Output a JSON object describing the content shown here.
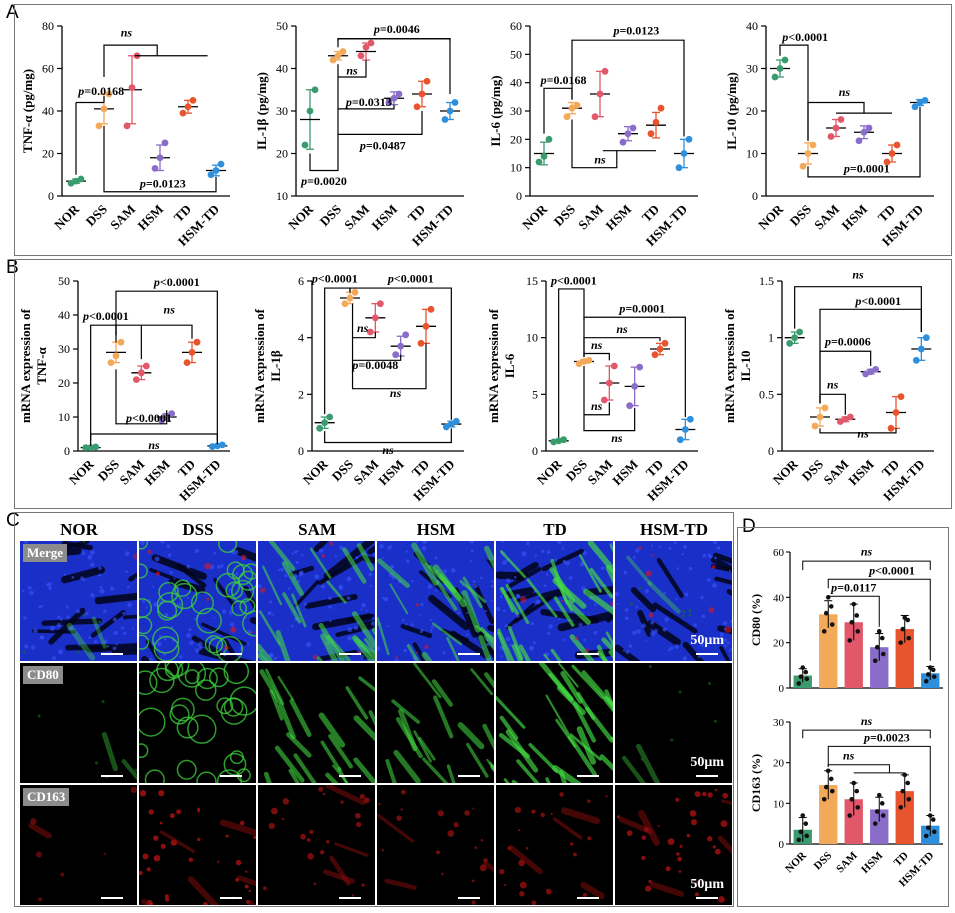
{
  "panel_labels": {
    "a": "A",
    "b": "B",
    "c": "C",
    "d": "D"
  },
  "groups": [
    "NOR",
    "DSS",
    "SAM",
    "HSM",
    "TD",
    "HSM-TD"
  ],
  "colors": {
    "NOR": "#3a9b6f",
    "DSS": "#f3a95a",
    "SAM": "#e0586a",
    "HSM": "#8a6cc9",
    "TD": "#e8542e",
    "HSM-TD": "#2e8fdc"
  },
  "chart_data": [
    {
      "id": "a1",
      "type": "scatter",
      "ylabel": "TNF-α (pg/mg)",
      "ylim": [
        0,
        80
      ],
      "yticks": [
        0,
        20,
        40,
        60,
        80
      ],
      "categories": [
        "NOR",
        "DSS",
        "SAM",
        "HSM",
        "TD",
        "HSM-TD"
      ],
      "points": [
        [
          6,
          7,
          8
        ],
        [
          33,
          41,
          48
        ],
        [
          33,
          51,
          66
        ],
        [
          13,
          18,
          25
        ],
        [
          39,
          42,
          45
        ],
        [
          10,
          12,
          15
        ]
      ],
      "means": [
        7,
        41,
        50,
        18,
        42,
        12
      ],
      "sd": [
        1,
        7,
        16,
        6,
        3,
        2.5
      ],
      "annotations": [
        {
          "text": "ns",
          "kind": "ns"
        },
        {
          "text": "p=0.0168",
          "kind": "p"
        },
        {
          "text": "p=0.0123",
          "kind": "p"
        }
      ]
    },
    {
      "id": "a2",
      "type": "scatter",
      "ylabel": "IL-1β (pg/mg)",
      "ylim": [
        10,
        50
      ],
      "yticks": [
        10,
        20,
        30,
        40,
        50
      ],
      "categories": [
        "NOR",
        "DSS",
        "SAM",
        "HSM",
        "TD",
        "HSM-TD"
      ],
      "points": [
        [
          22,
          30,
          35
        ],
        [
          42,
          43,
          44
        ],
        [
          43,
          45,
          46
        ],
        [
          32,
          33,
          34
        ],
        [
          31,
          34,
          37
        ],
        [
          28,
          30,
          32
        ]
      ],
      "means": [
        28,
        43,
        44,
        33,
        34,
        30
      ],
      "sd": [
        7,
        1,
        2,
        1.5,
        3,
        2
      ],
      "annotations": [
        {
          "text": "p=0.0046",
          "kind": "p"
        },
        {
          "text": "ns",
          "kind": "ns"
        },
        {
          "text": "p=0.0313",
          "kind": "p"
        },
        {
          "text": "p=0.0487",
          "kind": "p"
        },
        {
          "text": "p=0.0020",
          "kind": "p"
        }
      ]
    },
    {
      "id": "a3",
      "type": "scatter",
      "ylabel": "IL-6 (pg/mg)",
      "ylim": [
        0,
        60
      ],
      "yticks": [
        0,
        10,
        20,
        30,
        40,
        50,
        60
      ],
      "categories": [
        "NOR",
        "DSS",
        "SAM",
        "HSM",
        "TD",
        "HSM-TD"
      ],
      "points": [
        [
          12,
          14,
          20
        ],
        [
          28,
          31,
          32
        ],
        [
          28,
          36,
          44
        ],
        [
          19,
          22,
          24
        ],
        [
          22,
          26,
          31
        ],
        [
          10,
          15,
          20
        ]
      ],
      "means": [
        15,
        31,
        36,
        22,
        25,
        15
      ],
      "sd": [
        4,
        2,
        8,
        2.5,
        4.5,
        5
      ],
      "annotations": [
        {
          "text": "p=0.0123",
          "kind": "p"
        },
        {
          "text": "p=0.0168",
          "kind": "p"
        },
        {
          "text": "ns",
          "kind": "ns"
        }
      ]
    },
    {
      "id": "a4",
      "type": "scatter",
      "ylabel": "IL-10 (pg/mg)",
      "ylim": [
        0,
        40
      ],
      "yticks": [
        0,
        10,
        20,
        30,
        40
      ],
      "categories": [
        "NOR",
        "DSS",
        "SAM",
        "HSM",
        "TD",
        "HSM-TD"
      ],
      "points": [
        [
          28,
          30,
          32
        ],
        [
          7,
          10,
          12
        ],
        [
          14,
          16,
          18
        ],
        [
          13,
          15,
          16
        ],
        [
          8,
          10,
          12
        ],
        [
          21,
          22,
          22.5
        ]
      ],
      "means": [
        30,
        10,
        16,
        15,
        10,
        22
      ],
      "sd": [
        2,
        2.5,
        2,
        1.5,
        2,
        0.7
      ],
      "annotations": [
        {
          "text": "p<0.0001",
          "kind": "p"
        },
        {
          "text": "ns",
          "kind": "ns"
        },
        {
          "text": "p=0.0001",
          "kind": "p"
        }
      ]
    },
    {
      "id": "b1",
      "type": "scatter",
      "ylabel": "mRNA expression of TNF-α",
      "ylim": [
        0,
        50
      ],
      "yticks": [
        0,
        10,
        20,
        30,
        40,
        50
      ],
      "categories": [
        "NOR",
        "DSS",
        "SAM",
        "HSM",
        "TD",
        "HSM-TD"
      ],
      "points": [
        [
          1,
          1,
          1.2
        ],
        [
          26,
          28,
          32
        ],
        [
          21,
          23,
          25
        ],
        [
          9,
          10,
          11
        ],
        [
          26,
          29,
          32
        ],
        [
          1.3,
          1.5,
          1.8
        ]
      ],
      "means": [
        1,
        29,
        23,
        10,
        29,
        1.5
      ],
      "sd": [
        0.2,
        3,
        2,
        1,
        3,
        0.2
      ],
      "annotations": [
        {
          "text": "p<0.0001",
          "kind": "p"
        },
        {
          "text": "p<0.0001",
          "kind": "p"
        },
        {
          "text": "ns",
          "kind": "ns"
        },
        {
          "text": "p<0.0001",
          "kind": "p"
        },
        {
          "text": "ns",
          "kind": "ns"
        }
      ]
    },
    {
      "id": "b2",
      "type": "scatter",
      "ylabel": "mRNA expression of IL-1β",
      "ylim": [
        0,
        6
      ],
      "yticks": [
        0,
        2,
        4,
        6
      ],
      "categories": [
        "NOR",
        "DSS",
        "SAM",
        "HSM",
        "TD",
        "HSM-TD"
      ],
      "points": [
        [
          0.8,
          1.0,
          1.2
        ],
        [
          5.2,
          5.4,
          5.6
        ],
        [
          4.2,
          4.7,
          5.2
        ],
        [
          3.4,
          3.7,
          4.1
        ],
        [
          3.8,
          4.4,
          5.0
        ],
        [
          0.85,
          0.95,
          1.05
        ]
      ],
      "means": [
        1.0,
        5.4,
        4.7,
        3.7,
        4.4,
        0.95
      ],
      "sd": [
        0.2,
        0.2,
        0.5,
        0.35,
        0.6,
        0.1
      ],
      "annotations": [
        {
          "text": "p<0.0001",
          "kind": "p"
        },
        {
          "text": "p<0.0001",
          "kind": "p"
        },
        {
          "text": "ns",
          "kind": "ns"
        },
        {
          "text": "p=0.0048",
          "kind": "p"
        },
        {
          "text": "ns",
          "kind": "ns"
        },
        {
          "text": "ns",
          "kind": "ns"
        }
      ]
    },
    {
      "id": "b3",
      "type": "scatter",
      "ylabel": "mRNA expression of IL-6",
      "ylim": [
        0,
        15
      ],
      "yticks": [
        0,
        5,
        10,
        15
      ],
      "categories": [
        "NOR",
        "DSS",
        "SAM",
        "HSM",
        "TD",
        "HSM-TD"
      ],
      "points": [
        [
          0.8,
          0.9,
          1.0
        ],
        [
          7.7,
          7.9,
          8.0
        ],
        [
          4.5,
          6,
          7.5
        ],
        [
          4,
          5.7,
          7.4
        ],
        [
          8.5,
          9,
          9.5
        ],
        [
          1,
          1.9,
          2.8
        ]
      ],
      "means": [
        0.9,
        7.9,
        6,
        5.7,
        9,
        1.9
      ],
      "sd": [
        0.1,
        0.15,
        1.5,
        1.7,
        0.5,
        0.9
      ],
      "annotations": [
        {
          "text": "p<0.0001",
          "kind": "p"
        },
        {
          "text": "p=0.0001",
          "kind": "p"
        },
        {
          "text": "ns",
          "kind": "ns"
        },
        {
          "text": "ns",
          "kind": "ns"
        },
        {
          "text": "ns",
          "kind": "ns"
        },
        {
          "text": "ns",
          "kind": "ns"
        }
      ]
    },
    {
      "id": "b4",
      "type": "scatter",
      "ylabel": "mRNA expression of IL-10",
      "ylim": [
        0,
        1.5
      ],
      "yticks": [
        0.0,
        0.5,
        1.0,
        1.5
      ],
      "categories": [
        "NOR",
        "DSS",
        "SAM",
        "HSM",
        "TD",
        "HSM-TD"
      ],
      "points": [
        [
          0.95,
          1.0,
          1.05
        ],
        [
          0.22,
          0.3,
          0.38
        ],
        [
          0.26,
          0.28,
          0.3
        ],
        [
          0.68,
          0.7,
          0.72
        ],
        [
          0.2,
          0.34,
          0.48
        ],
        [
          0.8,
          0.9,
          1.0
        ]
      ],
      "means": [
        1.0,
        0.3,
        0.28,
        0.7,
        0.34,
        0.9
      ],
      "sd": [
        0.05,
        0.08,
        0.02,
        0.02,
        0.14,
        0.1
      ],
      "annotations": [
        {
          "text": "ns",
          "kind": "ns"
        },
        {
          "text": "p<0.0001",
          "kind": "p"
        },
        {
          "text": "p=0.0006",
          "kind": "p"
        },
        {
          "text": "ns",
          "kind": "ns"
        },
        {
          "text": "ns",
          "kind": "ns"
        }
      ]
    },
    {
      "id": "d1",
      "type": "bar",
      "ylabel": "CD80 (%)",
      "ylim": [
        0,
        60
      ],
      "yticks": [
        0,
        20,
        40,
        60
      ],
      "yticklabels": [
        "0",
        "20",
        "40",
        "60"
      ],
      "categories": [
        "NOR",
        "DSS",
        "SAM",
        "HSM",
        "TD",
        "HSM-TD"
      ],
      "values": [
        5.5,
        32.5,
        29,
        18,
        26,
        6.5
      ],
      "sd": [
        3,
        6,
        8,
        6,
        6,
        3
      ],
      "points": [
        [
          2,
          4,
          5,
          7,
          9
        ],
        [
          25,
          28,
          33,
          36,
          40
        ],
        [
          21,
          25,
          29,
          32,
          37
        ],
        [
          12,
          15,
          18,
          22,
          25
        ],
        [
          20,
          22,
          26,
          30,
          31
        ],
        [
          3,
          5,
          6,
          8,
          9
        ]
      ],
      "annotations": [
        {
          "text": "ns",
          "kind": "ns"
        },
        {
          "text": "p<0.0001",
          "kind": "p"
        },
        {
          "text": "p=0.0117",
          "kind": "p"
        }
      ]
    },
    {
      "id": "d2",
      "type": "bar",
      "ylabel": "CD163 (%)",
      "ylim": [
        0,
        30
      ],
      "yticks": [
        0,
        10,
        20,
        30
      ],
      "yticklabels": [
        "0",
        "10",
        "20",
        "30"
      ],
      "categories": [
        "NOR",
        "DSS",
        "SAM",
        "HSM",
        "TD",
        "HSM-TD"
      ],
      "values": [
        3.5,
        14.5,
        11,
        8.5,
        13,
        4.5
      ],
      "sd": [
        3,
        3.5,
        4,
        3,
        4,
        2.5
      ],
      "points": [
        [
          1,
          2,
          3,
          5,
          7
        ],
        [
          11,
          13,
          14,
          16,
          18
        ],
        [
          7,
          9,
          11,
          13,
          15
        ],
        [
          5,
          7,
          8,
          10,
          12
        ],
        [
          9,
          11,
          13,
          15,
          17
        ],
        [
          2,
          3,
          4,
          6,
          7
        ]
      ],
      "annotations": [
        {
          "text": "ns",
          "kind": "ns"
        },
        {
          "text": "p=0.0023",
          "kind": "p"
        },
        {
          "text": "ns",
          "kind": "ns"
        }
      ]
    }
  ],
  "micrographs": {
    "columns": [
      "NOR",
      "DSS",
      "SAM",
      "HSM",
      "TD",
      "HSM-TD"
    ],
    "rows": [
      {
        "tag": "Merge",
        "scale": "50μm"
      },
      {
        "tag": "CD80",
        "scale": "50μm"
      },
      {
        "tag": "CD163",
        "scale": "50μm"
      }
    ]
  }
}
